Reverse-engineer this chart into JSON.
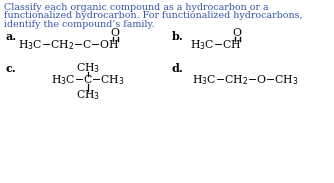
{
  "title_lines": [
    "Classify each organic compound as a hydrocarbon or a",
    "functionalized hydrocarbon. For functionalized hydrocarbons,",
    "identify the compound’s family."
  ],
  "title_color": "#3355aa",
  "title_fontsize": 6.8,
  "label_fontsize": 8.0,
  "chem_fontsize": 7.8,
  "bg_color": "#ffffff",
  "label_a": "a.",
  "label_b": "b.",
  "label_c": "c.",
  "label_d": "d.",
  "black": "#000000"
}
